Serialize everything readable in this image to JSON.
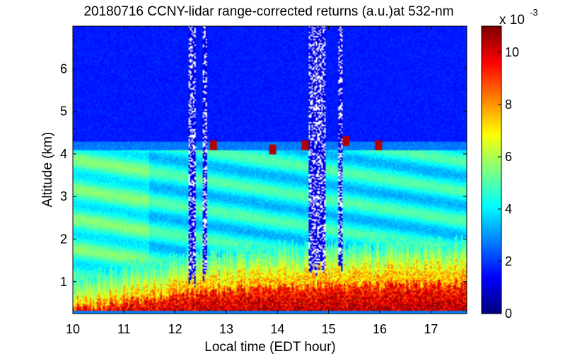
{
  "chart_data": {
    "type": "heatmap",
    "title": "20180716 CCNY-lidar range-corrected returns (a.u.)at 532-nm",
    "xlabel": "Local time (EDT hour)",
    "ylabel": "Altitude (km)",
    "xlim": [
      10,
      17.7
    ],
    "ylim": [
      0.25,
      7.0
    ],
    "x_ticks": [
      "10",
      "11",
      "12",
      "13",
      "14",
      "15",
      "16",
      "17"
    ],
    "y_ticks": [
      "1",
      "2",
      "3",
      "4",
      "5",
      "6"
    ],
    "colorbar": {
      "exponent_label": "x 10",
      "exponent": "-3",
      "range": [
        0,
        11
      ],
      "ticks": [
        "0",
        "2",
        "4",
        "6",
        "8",
        "10"
      ],
      "colormap": "jet"
    },
    "features": {
      "boundary_layer_top_km": [
        {
          "time": 10.0,
          "height": 0.5
        },
        {
          "time": 11.0,
          "height": 0.75
        },
        {
          "time": 12.0,
          "height": 1.0
        },
        {
          "time": 13.0,
          "height": 1.15
        },
        {
          "time": 14.0,
          "height": 1.25
        },
        {
          "time": 15.0,
          "height": 1.3
        },
        {
          "time": 16.0,
          "height": 1.3
        },
        {
          "time": 17.0,
          "height": 1.35
        },
        {
          "time": 17.7,
          "height": 1.4
        }
      ],
      "aerosol_layer_top_km": 4.1,
      "cloud_patches": [
        {
          "time": 12.75,
          "height": 4.2
        },
        {
          "time": 13.9,
          "height": 4.1
        },
        {
          "time": 14.55,
          "height": 4.2
        },
        {
          "time": 15.35,
          "height": 4.3
        },
        {
          "time": 15.98,
          "height": 4.2
        }
      ],
      "signal_gaps_hours": [
        [
          12.27,
          12.4
        ],
        [
          12.55,
          12.62
        ],
        [
          14.62,
          14.95
        ],
        [
          15.2,
          15.26
        ]
      ]
    }
  }
}
